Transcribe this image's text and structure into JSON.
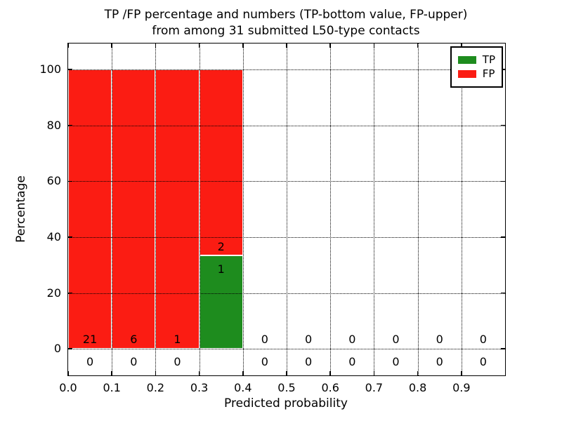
{
  "title": {
    "line1": "TP /FP percentage and numbers (TP-bottom value, FP-upper)",
    "line2": "from among 31 submitted L50-type contacts"
  },
  "axes": {
    "xlabel": "Predicted probability",
    "ylabel": "Percentage"
  },
  "legend": {
    "position": "upper right",
    "entries": [
      {
        "label": "TP",
        "color": "#1e8c1e"
      },
      {
        "label": "FP",
        "color": "#fb1c13"
      }
    ]
  },
  "colors": {
    "background": "#ffffff",
    "tp_green": "#1e8c1e",
    "fp_red": "#fb1c13",
    "axis": "#000000",
    "grid": "#000000",
    "bar_edge": "#ffffff",
    "text": "#000000"
  },
  "chart_data": {
    "type": "bar",
    "stacked": true,
    "title": "TP /FP percentage and numbers (TP-bottom value, FP-upper) from among 31 submitted L50-type contacts",
    "xlabel": "Predicted probability",
    "ylabel": "Percentage",
    "xlim": [
      0.0,
      1.0
    ],
    "ylim": [
      -9.5,
      109.3
    ],
    "xtick_values": [
      0.0,
      0.1,
      0.2,
      0.3,
      0.4,
      0.5,
      0.6,
      0.7,
      0.8,
      0.9
    ],
    "xtick_labels": [
      "0.0",
      "0.1",
      "0.2",
      "0.3",
      "0.4",
      "0.5",
      "0.6",
      "0.7",
      "0.8",
      "0.9"
    ],
    "ytick_values": [
      0,
      20,
      40,
      60,
      80,
      100
    ],
    "ytick_labels": [
      "0",
      "20",
      "40",
      "60",
      "80",
      "100"
    ],
    "grid": true,
    "grid_style": "dotted",
    "legend_position": "upper right",
    "total_contacts": 31,
    "bin_width": 0.1,
    "categories": [
      "0.0-0.1",
      "0.1-0.2",
      "0.2-0.3",
      "0.3-0.4",
      "0.4-0.5",
      "0.5-0.6",
      "0.6-0.7",
      "0.7-0.8",
      "0.8-0.9",
      "0.9-1.0"
    ],
    "series": [
      {
        "name": "TP",
        "color": "#1e8c1e",
        "values": [
          0,
          0,
          0,
          33.33,
          0,
          0,
          0,
          0,
          0,
          0
        ]
      },
      {
        "name": "FP",
        "color": "#fb1c13",
        "values": [
          100,
          100,
          100,
          66.67,
          0,
          0,
          0,
          0,
          0,
          0
        ]
      }
    ],
    "bins": [
      {
        "x_start": 0.0,
        "x_end": 0.1,
        "tp_count": 0,
        "fp_count": 21,
        "tp_pct": 0,
        "fp_pct": 100
      },
      {
        "x_start": 0.1,
        "x_end": 0.2,
        "tp_count": 0,
        "fp_count": 6,
        "tp_pct": 0,
        "fp_pct": 100
      },
      {
        "x_start": 0.2,
        "x_end": 0.3,
        "tp_count": 0,
        "fp_count": 1,
        "tp_pct": 0,
        "fp_pct": 100
      },
      {
        "x_start": 0.3,
        "x_end": 0.4,
        "tp_count": 1,
        "fp_count": 2,
        "tp_pct": 33.33,
        "fp_pct": 66.67
      },
      {
        "x_start": 0.4,
        "x_end": 0.5,
        "tp_count": 0,
        "fp_count": 0,
        "tp_pct": 0,
        "fp_pct": 0
      },
      {
        "x_start": 0.5,
        "x_end": 0.6,
        "tp_count": 0,
        "fp_count": 0,
        "tp_pct": 0,
        "fp_pct": 0
      },
      {
        "x_start": 0.6,
        "x_end": 0.7,
        "tp_count": 0,
        "fp_count": 0,
        "tp_pct": 0,
        "fp_pct": 0
      },
      {
        "x_start": 0.7,
        "x_end": 0.8,
        "tp_count": 0,
        "fp_count": 0,
        "tp_pct": 0,
        "fp_pct": 0
      },
      {
        "x_start": 0.8,
        "x_end": 0.9,
        "tp_count": 0,
        "fp_count": 0,
        "tp_pct": 0,
        "fp_pct": 0
      },
      {
        "x_start": 0.9,
        "x_end": 1.0,
        "tp_count": 0,
        "fp_count": 0,
        "tp_pct": 0,
        "fp_pct": 0
      }
    ]
  }
}
